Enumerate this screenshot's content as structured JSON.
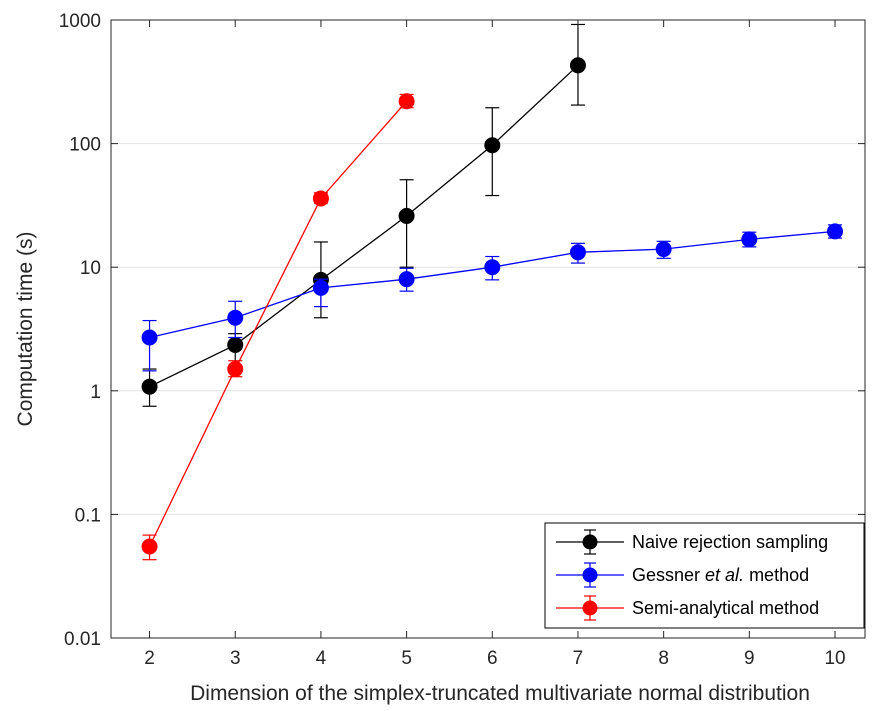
{
  "chart_data": {
    "type": "line",
    "title": "",
    "xlabel": "Dimension of the simplex-truncated multivariate normal distribution",
    "ylabel": "Computation time (s)",
    "x_ticks": [
      "2",
      "3",
      "4",
      "5",
      "6",
      "7",
      "8",
      "9",
      "10"
    ],
    "y_ticks": [
      {
        "value": 0.01,
        "label": "0.01"
      },
      {
        "value": 0.1,
        "label": "0.1"
      },
      {
        "value": 1,
        "label": "1"
      },
      {
        "value": 10,
        "label": "10"
      },
      {
        "value": 100,
        "label": "100"
      },
      {
        "value": 1000,
        "label": "1000"
      }
    ],
    "xlim": [
      1.55,
      10.35
    ],
    "ylim": [
      0.01,
      1000
    ],
    "y_scale": "log",
    "grid": "horizontal",
    "legend_position": "bottom-right",
    "series": [
      {
        "name": "Naive rejection sampling",
        "color": "#000000",
        "points": [
          {
            "x": 2,
            "y": 1.08,
            "lo": 0.75,
            "hi": 1.5
          },
          {
            "x": 3,
            "y": 2.35,
            "lo": 1.55,
            "hi": 2.9
          },
          {
            "x": 4,
            "y": 7.9,
            "lo": 3.9,
            "hi": 16
          },
          {
            "x": 5,
            "y": 26,
            "lo": 10,
            "hi": 51
          },
          {
            "x": 6,
            "y": 97,
            "lo": 38,
            "hi": 195
          },
          {
            "x": 7,
            "y": 430,
            "lo": 205,
            "hi": 920
          }
        ]
      },
      {
        "name": "Gessner et al. method",
        "name_parts": [
          "Gessner ",
          "et al.",
          " method"
        ],
        "color": "#0000ff",
        "points": [
          {
            "x": 2,
            "y": 2.7,
            "lo": 1.45,
            "hi": 3.7
          },
          {
            "x": 3,
            "y": 3.9,
            "lo": 2.7,
            "hi": 5.3
          },
          {
            "x": 4,
            "y": 6.8,
            "lo": 4.8,
            "hi": 8.0
          },
          {
            "x": 5,
            "y": 8.0,
            "lo": 6.4,
            "hi": 9.8
          },
          {
            "x": 6,
            "y": 10,
            "lo": 7.9,
            "hi": 12.2
          },
          {
            "x": 7,
            "y": 13.2,
            "lo": 10.8,
            "hi": 15.6
          },
          {
            "x": 8,
            "y": 14,
            "lo": 11.8,
            "hi": 16.2
          },
          {
            "x": 9,
            "y": 16.8,
            "lo": 14.6,
            "hi": 19.2
          },
          {
            "x": 10,
            "y": 19.5,
            "lo": 17.2,
            "hi": 22
          }
        ]
      },
      {
        "name": "Semi-analytical method",
        "color": "#ff0000",
        "points": [
          {
            "x": 2,
            "y": 0.055,
            "lo": 0.043,
            "hi": 0.068
          },
          {
            "x": 3,
            "y": 1.5,
            "lo": 1.3,
            "hi": 1.75
          },
          {
            "x": 4,
            "y": 36,
            "lo": 33,
            "hi": 40
          },
          {
            "x": 5,
            "y": 220,
            "lo": 195,
            "hi": 250
          }
        ]
      }
    ]
  }
}
